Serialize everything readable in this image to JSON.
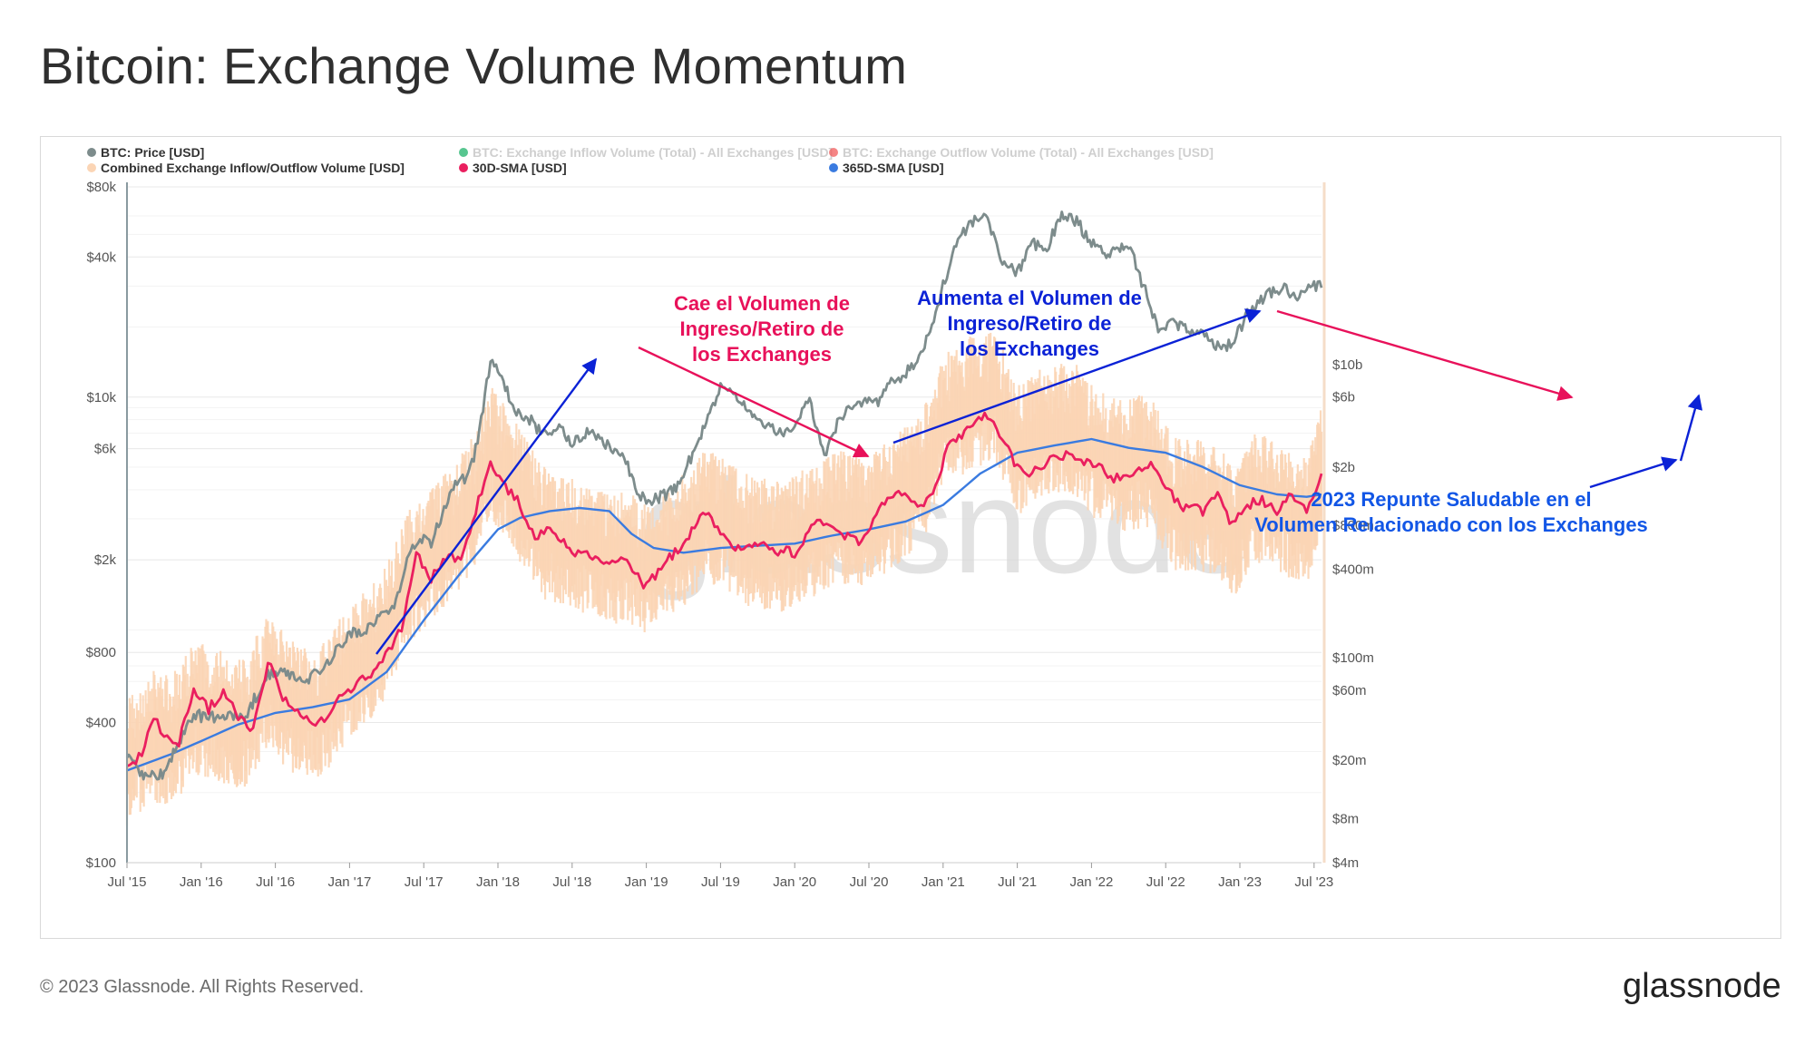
{
  "title": "Bitcoin: Exchange Volume Momentum",
  "footer": {
    "copyright": "© 2023 Glassnode. All Rights Reserved.",
    "logo": "glassnode"
  },
  "watermark": "glassnode",
  "colors": {
    "price": "#7d8c8c",
    "inflow": "#1fb36b",
    "outflow": "#f25c5c",
    "combined": "#fbd5b5",
    "sma30": "#ea1f5f",
    "sma365": "#3a7be0",
    "annotation_red": "#e8115a",
    "annotation_blue": "#0b22d6",
    "annotation_blue2": "#1256e6"
  },
  "chart_data": {
    "type": "line",
    "legend": [
      {
        "label": "BTC: Price [USD]",
        "color": "#7d8c8c",
        "dimmed": false
      },
      {
        "label": "BTC: Exchange Inflow Volume (Total) - All Exchanges [USD]",
        "color": "#1fb36b",
        "dimmed": true
      },
      {
        "label": "BTC: Exchange Outflow Volume (Total) - All Exchanges [USD]",
        "color": "#f25c5c",
        "dimmed": true
      },
      {
        "label": "Combined Exchange Inflow/Outflow Volume [USD]",
        "color": "#fbd5b5",
        "dimmed": false
      },
      {
        "label": "30D-SMA [USD]",
        "color": "#ea1f5f",
        "dimmed": false
      },
      {
        "label": "365D-SMA [USD]",
        "color": "#3a7be0",
        "dimmed": false
      }
    ],
    "x_ticks": [
      "Jul '15",
      "Jan '16",
      "Jul '16",
      "Jan '17",
      "Jul '17",
      "Jan '18",
      "Jul '18",
      "Jan '19",
      "Jul '19",
      "Jan '20",
      "Jul '20",
      "Jan '21",
      "Jul '21",
      "Jan '22",
      "Jul '22",
      "Jan '23",
      "Jul '23"
    ],
    "x_tick_values": [
      2015.5,
      2016.0,
      2016.5,
      2017.0,
      2017.5,
      2018.0,
      2018.5,
      2019.0,
      2019.5,
      2020.0,
      2020.5,
      2021.0,
      2021.5,
      2022.0,
      2022.5,
      2023.0,
      2023.5
    ],
    "xlim": [
      2015.5,
      2023.55
    ],
    "y_left": {
      "scale": "log",
      "ylim": [
        100,
        80000
      ],
      "ticks": [
        {
          "value": 100,
          "label": "$100"
        },
        {
          "value": 400,
          "label": "$400"
        },
        {
          "value": 800,
          "label": "$800"
        },
        {
          "value": 2000,
          "label": "$2k"
        },
        {
          "value": 6000,
          "label": "$6k"
        },
        {
          "value": 10000,
          "label": "$10k"
        },
        {
          "value": 40000,
          "label": "$40k"
        },
        {
          "value": 80000,
          "label": "$80k"
        }
      ]
    },
    "y_right": {
      "scale": "log",
      "ylim": [
        4000000,
        60000000000
      ],
      "ticks": [
        {
          "value": 4000000,
          "label": "$4m"
        },
        {
          "value": 8000000,
          "label": "$8m"
        },
        {
          "value": 20000000,
          "label": "$20m"
        },
        {
          "value": 60000000,
          "label": "$60m"
        },
        {
          "value": 100000000,
          "label": "$100m"
        },
        {
          "value": 400000000,
          "label": "$400m"
        },
        {
          "value": 800000000,
          "label": "$800m"
        },
        {
          "value": 2000000000,
          "label": "$2b"
        },
        {
          "value": 6000000000,
          "label": "$6b"
        },
        {
          "value": 10000000000,
          "label": "$10b"
        }
      ]
    },
    "series": [
      {
        "name": "BTC: Price [USD]",
        "axis": "left",
        "color": "#7d8c8c",
        "points": [
          [
            2015.5,
            280
          ],
          [
            2015.6,
            240
          ],
          [
            2015.75,
            240
          ],
          [
            2015.85,
            330
          ],
          [
            2015.95,
            430
          ],
          [
            2016.1,
            420
          ],
          [
            2016.3,
            430
          ],
          [
            2016.45,
            650
          ],
          [
            2016.55,
            660
          ],
          [
            2016.7,
            610
          ],
          [
            2016.85,
            720
          ],
          [
            2017.0,
            980
          ],
          [
            2017.1,
            1000
          ],
          [
            2017.2,
            1150
          ],
          [
            2017.3,
            1250
          ],
          [
            2017.4,
            2100
          ],
          [
            2017.5,
            2500
          ],
          [
            2017.55,
            2400
          ],
          [
            2017.6,
            2900
          ],
          [
            2017.7,
            4200
          ],
          [
            2017.8,
            4500
          ],
          [
            2017.85,
            6000
          ],
          [
            2017.95,
            14000
          ],
          [
            2018.0,
            13500
          ],
          [
            2018.1,
            9000
          ],
          [
            2018.2,
            8200
          ],
          [
            2018.3,
            7000
          ],
          [
            2018.4,
            7500
          ],
          [
            2018.5,
            6300
          ],
          [
            2018.6,
            7000
          ],
          [
            2018.7,
            6500
          ],
          [
            2018.85,
            5500
          ],
          [
            2018.95,
            3700
          ],
          [
            2019.05,
            3600
          ],
          [
            2019.2,
            4000
          ],
          [
            2019.3,
            5500
          ],
          [
            2019.45,
            9000
          ],
          [
            2019.5,
            11500
          ],
          [
            2019.6,
            10000
          ],
          [
            2019.75,
            8200
          ],
          [
            2019.85,
            7300
          ],
          [
            2019.95,
            7200
          ],
          [
            2020.1,
            9500
          ],
          [
            2020.2,
            5500
          ],
          [
            2020.3,
            8000
          ],
          [
            2020.4,
            9600
          ],
          [
            2020.55,
            9300
          ],
          [
            2020.65,
            11500
          ],
          [
            2020.8,
            13500
          ],
          [
            2020.9,
            18000
          ],
          [
            2021.0,
            30000
          ],
          [
            2021.1,
            47000
          ],
          [
            2021.2,
            57000
          ],
          [
            2021.3,
            58000
          ],
          [
            2021.4,
            38000
          ],
          [
            2021.5,
            34000
          ],
          [
            2021.6,
            46000
          ],
          [
            2021.7,
            44000
          ],
          [
            2021.8,
            61000
          ],
          [
            2021.9,
            57000
          ],
          [
            2022.0,
            46000
          ],
          [
            2022.1,
            40000
          ],
          [
            2022.25,
            45000
          ],
          [
            2022.35,
            30000
          ],
          [
            2022.45,
            20000
          ],
          [
            2022.55,
            21000
          ],
          [
            2022.7,
            19500
          ],
          [
            2022.85,
            16500
          ],
          [
            2022.95,
            16800
          ],
          [
            2023.05,
            23000
          ],
          [
            2023.2,
            28000
          ],
          [
            2023.3,
            29000
          ],
          [
            2023.4,
            27000
          ],
          [
            2023.5,
            30500
          ],
          [
            2023.55,
            29500
          ]
        ]
      },
      {
        "name": "Combined Exchange Inflow/Outflow Volume [USD]",
        "axis": "right",
        "color": "#fbd5b5",
        "points": [
          [
            2015.5,
            18000000
          ],
          [
            2015.65,
            30000000
          ],
          [
            2015.8,
            26000000
          ],
          [
            2015.95,
            45000000
          ],
          [
            2016.1,
            40000000
          ],
          [
            2016.3,
            35000000
          ],
          [
            2016.45,
            70000000
          ],
          [
            2016.6,
            45000000
          ],
          [
            2016.8,
            40000000
          ],
          [
            2017.0,
            80000000
          ],
          [
            2017.2,
            120000000
          ],
          [
            2017.4,
            350000000
          ],
          [
            2017.55,
            500000000
          ],
          [
            2017.7,
            700000000
          ],
          [
            2017.85,
            1200000000
          ],
          [
            2017.95,
            2500000000
          ],
          [
            2018.1,
            1500000000
          ],
          [
            2018.3,
            700000000
          ],
          [
            2018.5,
            600000000
          ],
          [
            2018.7,
            500000000
          ],
          [
            2018.9,
            450000000
          ],
          [
            2019.0,
            400000000
          ],
          [
            2019.2,
            550000000
          ],
          [
            2019.4,
            900000000
          ],
          [
            2019.55,
            800000000
          ],
          [
            2019.7,
            600000000
          ],
          [
            2019.9,
            550000000
          ],
          [
            2020.1,
            700000000
          ],
          [
            2020.3,
            900000000
          ],
          [
            2020.5,
            800000000
          ],
          [
            2020.7,
            1200000000
          ],
          [
            2020.85,
            1600000000
          ],
          [
            2021.0,
            4000000000
          ],
          [
            2021.2,
            5500000000
          ],
          [
            2021.35,
            6000000000
          ],
          [
            2021.5,
            2500000000
          ],
          [
            2021.7,
            3500000000
          ],
          [
            2021.9,
            3500000000
          ],
          [
            2022.0,
            2500000000
          ],
          [
            2022.2,
            2000000000
          ],
          [
            2022.4,
            2200000000
          ],
          [
            2022.55,
            1100000000
          ],
          [
            2022.7,
            1100000000
          ],
          [
            2022.85,
            1000000000
          ],
          [
            2022.95,
            700000000
          ],
          [
            2023.1,
            1200000000
          ],
          [
            2023.3,
            1000000000
          ],
          [
            2023.45,
            800000000
          ],
          [
            2023.55,
            2000000000
          ]
        ]
      },
      {
        "name": "30D-SMA [USD]",
        "axis": "right",
        "color": "#ea1f5f",
        "points": [
          [
            2015.5,
            17000000
          ],
          [
            2015.6,
            22000000
          ],
          [
            2015.68,
            40000000
          ],
          [
            2015.75,
            28000000
          ],
          [
            2015.85,
            27000000
          ],
          [
            2015.95,
            60000000
          ],
          [
            2016.05,
            45000000
          ],
          [
            2016.15,
            60000000
          ],
          [
            2016.25,
            40000000
          ],
          [
            2016.35,
            32000000
          ],
          [
            2016.45,
            95000000
          ],
          [
            2016.55,
            55000000
          ],
          [
            2016.65,
            45000000
          ],
          [
            2016.75,
            35000000
          ],
          [
            2016.85,
            40000000
          ],
          [
            2016.95,
            55000000
          ],
          [
            2017.05,
            65000000
          ],
          [
            2017.2,
            90000000
          ],
          [
            2017.35,
            160000000
          ],
          [
            2017.45,
            500000000
          ],
          [
            2017.55,
            350000000
          ],
          [
            2017.65,
            500000000
          ],
          [
            2017.75,
            450000000
          ],
          [
            2017.85,
            1000000000
          ],
          [
            2017.95,
            2200000000
          ],
          [
            2018.05,
            1500000000
          ],
          [
            2018.15,
            1100000000
          ],
          [
            2018.25,
            650000000
          ],
          [
            2018.35,
            800000000
          ],
          [
            2018.5,
            500000000
          ],
          [
            2018.6,
            520000000
          ],
          [
            2018.75,
            420000000
          ],
          [
            2018.85,
            500000000
          ],
          [
            2019.0,
            300000000
          ],
          [
            2019.1,
            420000000
          ],
          [
            2019.25,
            600000000
          ],
          [
            2019.4,
            1000000000
          ],
          [
            2019.5,
            700000000
          ],
          [
            2019.6,
            550000000
          ],
          [
            2019.75,
            620000000
          ],
          [
            2019.85,
            550000000
          ],
          [
            2020.0,
            520000000
          ],
          [
            2020.15,
            850000000
          ],
          [
            2020.3,
            700000000
          ],
          [
            2020.45,
            600000000
          ],
          [
            2020.55,
            1000000000
          ],
          [
            2020.7,
            1300000000
          ],
          [
            2020.85,
            1100000000
          ],
          [
            2020.95,
            1500000000
          ],
          [
            2021.05,
            3000000000
          ],
          [
            2021.2,
            3800000000
          ],
          [
            2021.3,
            4500000000
          ],
          [
            2021.4,
            3000000000
          ],
          [
            2021.5,
            2000000000
          ],
          [
            2021.6,
            1800000000
          ],
          [
            2021.7,
            2200000000
          ],
          [
            2021.85,
            2500000000
          ],
          [
            2021.95,
            2200000000
          ],
          [
            2022.05,
            2000000000
          ],
          [
            2022.15,
            1700000000
          ],
          [
            2022.3,
            1800000000
          ],
          [
            2022.4,
            2000000000
          ],
          [
            2022.5,
            1500000000
          ],
          [
            2022.6,
            1100000000
          ],
          [
            2022.75,
            1000000000
          ],
          [
            2022.85,
            1300000000
          ],
          [
            2022.95,
            800000000
          ],
          [
            2023.05,
            1100000000
          ],
          [
            2023.15,
            1200000000
          ],
          [
            2023.25,
            1000000000
          ],
          [
            2023.35,
            1300000000
          ],
          [
            2023.45,
            1000000000
          ],
          [
            2023.55,
            1800000000
          ]
        ]
      },
      {
        "name": "365D-SMA [USD]",
        "axis": "right",
        "color": "#3a7be0",
        "points": [
          [
            2015.5,
            17000000
          ],
          [
            2015.8,
            22000000
          ],
          [
            2016.0,
            27000000
          ],
          [
            2016.25,
            35000000
          ],
          [
            2016.5,
            42000000
          ],
          [
            2016.75,
            46000000
          ],
          [
            2017.0,
            52000000
          ],
          [
            2017.25,
            80000000
          ],
          [
            2017.5,
            180000000
          ],
          [
            2017.75,
            380000000
          ],
          [
            2018.0,
            750000000
          ],
          [
            2018.15,
            900000000
          ],
          [
            2018.35,
            1000000000
          ],
          [
            2018.55,
            1050000000
          ],
          [
            2018.75,
            1000000000
          ],
          [
            2018.9,
            700000000
          ],
          [
            2019.05,
            560000000
          ],
          [
            2019.25,
            520000000
          ],
          [
            2019.5,
            560000000
          ],
          [
            2019.75,
            580000000
          ],
          [
            2020.0,
            600000000
          ],
          [
            2020.25,
            680000000
          ],
          [
            2020.5,
            750000000
          ],
          [
            2020.75,
            850000000
          ],
          [
            2021.0,
            1100000000
          ],
          [
            2021.25,
            1800000000
          ],
          [
            2021.5,
            2500000000
          ],
          [
            2021.75,
            2800000000
          ],
          [
            2022.0,
            3100000000
          ],
          [
            2022.25,
            2700000000
          ],
          [
            2022.5,
            2500000000
          ],
          [
            2022.75,
            2000000000
          ],
          [
            2023.0,
            1500000000
          ],
          [
            2023.25,
            1300000000
          ],
          [
            2023.45,
            1250000000
          ],
          [
            2023.55,
            1300000000
          ]
        ]
      }
    ],
    "annotations": [
      {
        "text": "Cae el Volumen de\nIngreso/Retiro de\nlos Exchanges",
        "color": "#e8115a"
      },
      {
        "text": "Aumenta el Volumen de\nIngreso/Retiro de\nlos Exchanges",
        "color": "#0b22d6"
      },
      {
        "text": "2023 Repunte Saludable en el\nVolumen Relacionado con los Exchanges",
        "color": "#1256e6"
      }
    ]
  }
}
